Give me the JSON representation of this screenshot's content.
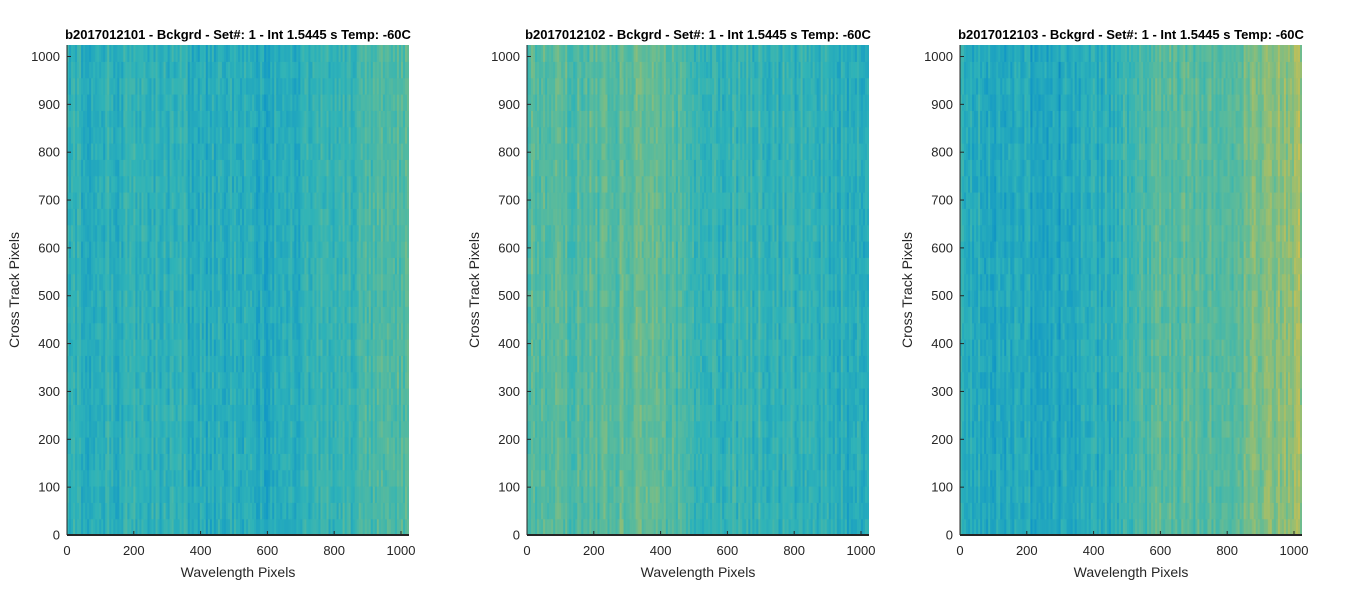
{
  "chart_data": [
    {
      "type": "heatmap",
      "title": "b2017012101 - Bckgrd - Set#: 1 - Int 1.5445 s Temp: -60C",
      "xlabel": "Wavelength Pixels",
      "ylabel": "Cross Track Pixels",
      "xlim": [
        0,
        1024
      ],
      "ylim": [
        0,
        1024
      ],
      "xticks": [
        0,
        200,
        400,
        600,
        800,
        1000
      ],
      "yticks": [
        0,
        100,
        200,
        300,
        400,
        500,
        600,
        700,
        800,
        900,
        1000
      ],
      "xtick_labels": [
        "0",
        "200",
        "400",
        "600",
        "800",
        "1000"
      ],
      "ytick_labels": [
        "0",
        "100",
        "200",
        "300",
        "400",
        "500",
        "600",
        "700",
        "800",
        "900",
        "1000"
      ],
      "column_profile_x": [
        0,
        100,
        200,
        300,
        400,
        500,
        600,
        700,
        800,
        900,
        1000,
        1024
      ],
      "column_profile": [
        0.4,
        0.38,
        0.42,
        0.4,
        0.36,
        0.35,
        0.34,
        0.38,
        0.42,
        0.5,
        0.56,
        0.6
      ]
    },
    {
      "type": "heatmap",
      "title": "b2017012102 - Bckgrd - Set#: 1 - Int 1.5445 s Temp: -60C",
      "xlabel": "Wavelength Pixels",
      "ylabel": "Cross Track Pixels",
      "xlim": [
        0,
        1024
      ],
      "ylim": [
        0,
        1024
      ],
      "xticks": [
        0,
        200,
        400,
        600,
        800,
        1000
      ],
      "yticks": [
        0,
        100,
        200,
        300,
        400,
        500,
        600,
        700,
        800,
        900,
        1000
      ],
      "xtick_labels": [
        "0",
        "200",
        "400",
        "600",
        "800",
        "1000"
      ],
      "ytick_labels": [
        "0",
        "100",
        "200",
        "300",
        "400",
        "500",
        "600",
        "700",
        "800",
        "900",
        "1000"
      ],
      "column_profile_x": [
        0,
        100,
        200,
        300,
        400,
        500,
        600,
        700,
        800,
        900,
        1000,
        1024
      ],
      "column_profile": [
        0.58,
        0.56,
        0.55,
        0.6,
        0.58,
        0.45,
        0.42,
        0.44,
        0.4,
        0.38,
        0.36,
        0.35
      ]
    },
    {
      "type": "heatmap",
      "title": "b2017012103 - Bckgrd - Set#: 1 - Int 1.5445 s Temp: -60C",
      "xlabel": "Wavelength Pixels",
      "ylabel": "Cross Track Pixels",
      "xlim": [
        0,
        1024
      ],
      "ylim": [
        0,
        1024
      ],
      "xticks": [
        0,
        200,
        400,
        600,
        800,
        1000
      ],
      "yticks": [
        0,
        100,
        200,
        300,
        400,
        500,
        600,
        700,
        800,
        900,
        1000
      ],
      "xtick_labels": [
        "0",
        "200",
        "400",
        "600",
        "800",
        "1000"
      ],
      "ytick_labels": [
        "0",
        "100",
        "200",
        "300",
        "400",
        "500",
        "600",
        "700",
        "800",
        "900",
        "1000"
      ],
      "column_profile_x": [
        0,
        100,
        200,
        300,
        400,
        500,
        600,
        700,
        800,
        900,
        1000,
        1024
      ],
      "column_profile": [
        0.42,
        0.32,
        0.3,
        0.3,
        0.34,
        0.45,
        0.56,
        0.58,
        0.58,
        0.68,
        0.78,
        0.8
      ]
    }
  ],
  "colormap": [
    "#0072bd",
    "#1399c5",
    "#2fb3b8",
    "#5dbb9a",
    "#a1be6b",
    "#d9c04a"
  ]
}
